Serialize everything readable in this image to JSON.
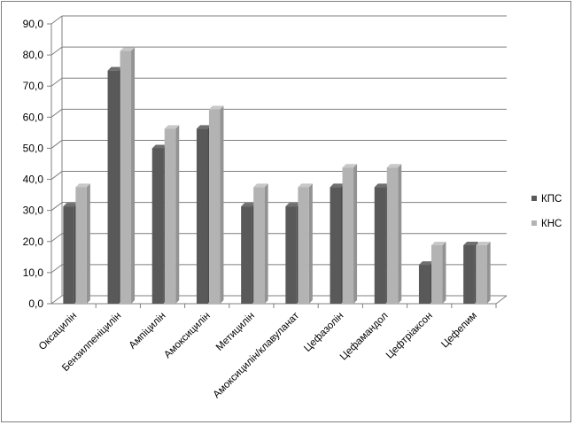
{
  "chart_data": {
    "type": "bar",
    "title": "",
    "xlabel": "",
    "ylabel": "",
    "ylim": [
      0,
      90
    ],
    "yticks": [
      0,
      10,
      20,
      30,
      40,
      50,
      60,
      70,
      80,
      90
    ],
    "ytick_labels": [
      "0,0",
      "10,0",
      "20,0",
      "30,0",
      "40,0",
      "50,0",
      "60,0",
      "70,0",
      "80,0",
      "90,0"
    ],
    "grid": true,
    "legend_position": "right",
    "categories": [
      "Оксацилін",
      "Бензилпеніцилін",
      "Ампіцилін",
      "Амоксицилін",
      "Метицилін",
      "Амоксицилін/клавуланат",
      "Цефазолін",
      "Цефамандол",
      "Цефтріаксон",
      "Цефепим"
    ],
    "series": [
      {
        "name": "КПС",
        "color": "#595959",
        "values": [
          31.3,
          75.0,
          50.0,
          56.3,
          31.3,
          31.3,
          37.5,
          37.5,
          12.5,
          18.8
        ]
      },
      {
        "name": "КНС",
        "color": "#b3b3b3",
        "values": [
          37.5,
          81.3,
          56.3,
          62.5,
          37.5,
          37.5,
          43.8,
          43.8,
          18.8,
          18.8
        ]
      }
    ]
  }
}
